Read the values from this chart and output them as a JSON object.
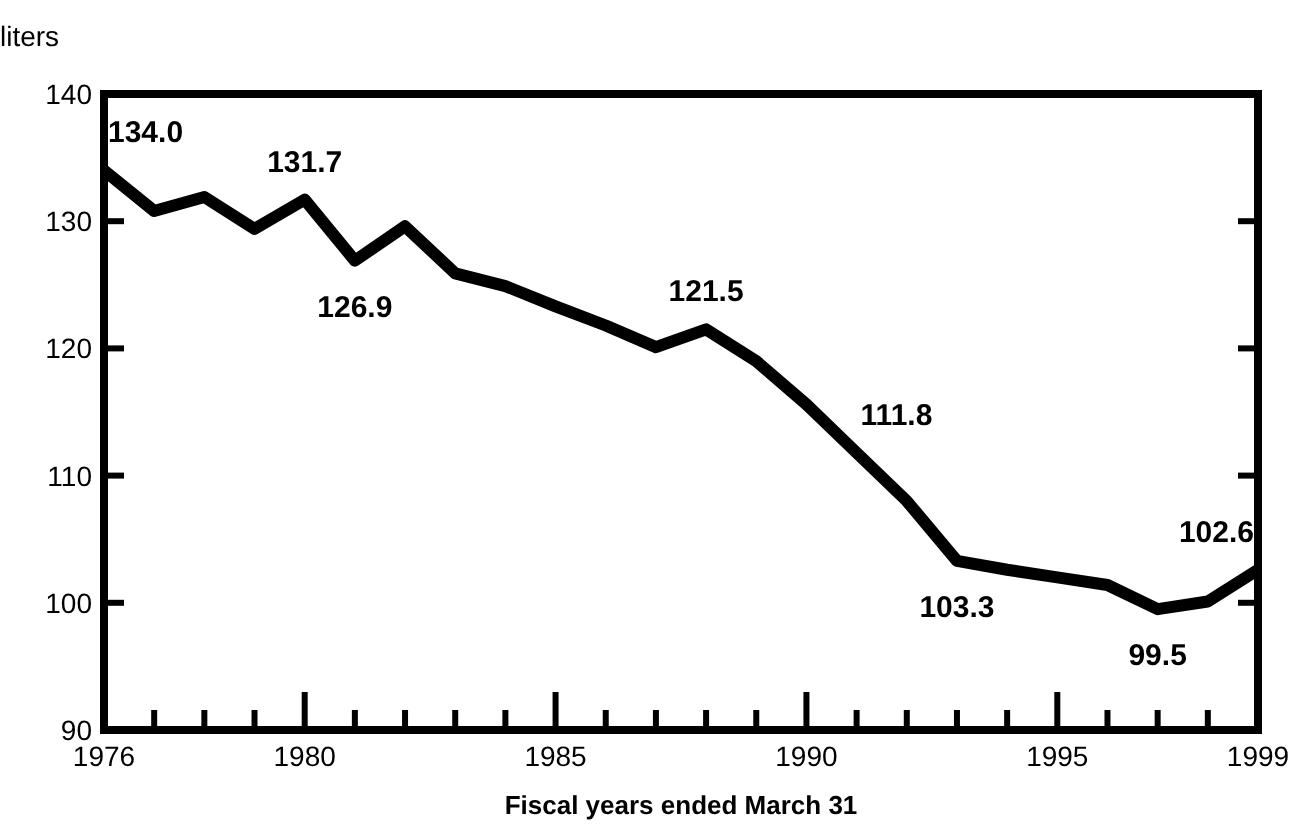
{
  "chart_data": {
    "type": "line",
    "ylabel": "liters",
    "xlabel": "Fiscal years ended March 31",
    "x": [
      1976,
      1977,
      1978,
      1979,
      1980,
      1981,
      1982,
      1983,
      1984,
      1985,
      1986,
      1987,
      1988,
      1989,
      1990,
      1991,
      1992,
      1993,
      1994,
      1995,
      1996,
      1997,
      1998,
      1999
    ],
    "series": [
      {
        "color": "#000000",
        "values": [
          134.0,
          130.8,
          131.9,
          129.4,
          131.7,
          126.9,
          129.6,
          125.9,
          124.9,
          123.3,
          121.8,
          120.1,
          121.5,
          119.0,
          115.6,
          111.8,
          108.0,
          103.3,
          102.6,
          102.0,
          101.4,
          99.5,
          100.1,
          102.6
        ],
        "value_labels": [
          "134.0",
          null,
          null,
          null,
          "131.7",
          "126.9",
          null,
          null,
          null,
          null,
          null,
          null,
          "121.5",
          null,
          null,
          "111.8",
          null,
          "103.3",
          null,
          null,
          null,
          "99.5",
          null,
          "102.6"
        ]
      }
    ],
    "xlim": [
      1976,
      1999
    ],
    "xticks": [
      1976,
      {
        "value": 1977,
        "label": null
      },
      {
        "value": 1978,
        "label": null
      },
      {
        "value": 1979,
        "label": null
      },
      1980,
      {
        "value": 1981,
        "label": null
      },
      {
        "value": 1982,
        "label": null
      },
      {
        "value": 1983,
        "label": null
      },
      {
        "value": 1984,
        "label": null
      },
      1985,
      {
        "value": 1986,
        "label": null
      },
      {
        "value": 1987,
        "label": null
      },
      {
        "value": 1988,
        "label": null
      },
      {
        "value": 1989,
        "label": null
      },
      1990,
      {
        "value": 1991,
        "label": null
      },
      {
        "value": 1992,
        "label": null
      },
      {
        "value": 1993,
        "label": null
      },
      {
        "value": 1994,
        "label": null
      },
      1995,
      {
        "value": 1996,
        "label": null
      },
      {
        "value": 1997,
        "label": null
      },
      {
        "value": 1998,
        "label": null
      },
      1999
    ],
    "ylim": [
      90,
      140
    ],
    "yticks": [
      90,
      100,
      110,
      120,
      130,
      140
    ],
    "grid": false,
    "marker": "none",
    "line_style": "solid"
  }
}
